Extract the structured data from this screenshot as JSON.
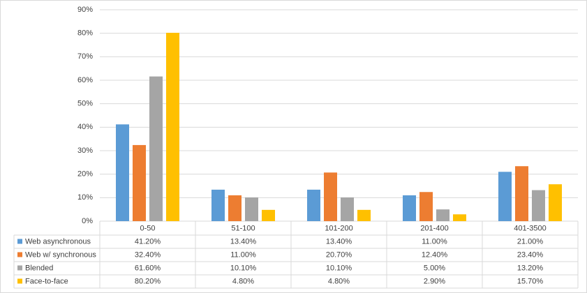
{
  "chart_data": {
    "type": "bar",
    "categories": [
      "0-50",
      "51-100",
      "101-200",
      "201-400",
      "401-3500"
    ],
    "series": [
      {
        "name": "Web asynchronous",
        "color": "#5b9bd5",
        "values": [
          41.2,
          13.4,
          13.4,
          11.0,
          21.0
        ],
        "value_labels": [
          "41.20%",
          "13.40%",
          "13.40%",
          "11.00%",
          "21.00%"
        ]
      },
      {
        "name": "Web w/ synchronous",
        "color": "#ed7d31",
        "values": [
          32.4,
          11.0,
          20.7,
          12.4,
          23.4
        ],
        "value_labels": [
          "32.40%",
          "11.00%",
          "20.70%",
          "12.40%",
          "23.40%"
        ]
      },
      {
        "name": "Blended",
        "color": "#a5a5a5",
        "values": [
          61.6,
          10.1,
          10.1,
          5.0,
          13.2
        ],
        "value_labels": [
          "61.60%",
          "10.10%",
          "10.10%",
          "5.00%",
          "13.20%"
        ]
      },
      {
        "name": "Face-to-face",
        "color": "#ffc000",
        "values": [
          80.2,
          4.8,
          4.8,
          2.9,
          15.7
        ],
        "value_labels": [
          "80.20%",
          "4.80%",
          "4.80%",
          "2.90%",
          "15.70%"
        ]
      }
    ],
    "ylim": [
      0,
      90
    ],
    "yticks": [
      {
        "value": 0,
        "label": "0%"
      },
      {
        "value": 10,
        "label": "10%"
      },
      {
        "value": 20,
        "label": "20%"
      },
      {
        "value": 30,
        "label": "30%"
      },
      {
        "value": 40,
        "label": "40%"
      },
      {
        "value": 50,
        "label": "50%"
      },
      {
        "value": 60,
        "label": "60%"
      },
      {
        "value": 70,
        "label": "70%"
      },
      {
        "value": 80,
        "label": "80%"
      },
      {
        "value": 90,
        "label": "90%"
      }
    ],
    "grid": true
  }
}
